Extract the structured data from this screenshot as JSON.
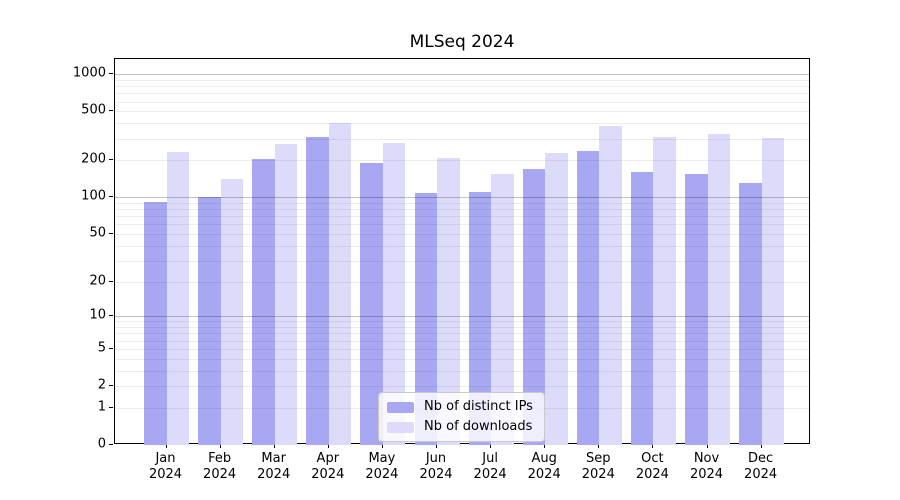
{
  "chart_data": {
    "type": "bar",
    "title": "MLSeq 2024",
    "categories": [
      "Jan 2024",
      "Feb 2024",
      "Mar 2024",
      "Apr 2024",
      "May 2024",
      "Jun 2024",
      "Jul 2024",
      "Aug 2024",
      "Sep 2024",
      "Oct 2024",
      "Nov 2024",
      "Dec 2024"
    ],
    "series": [
      {
        "name": "Nb of distinct IPs",
        "key": "ips",
        "color": "#a8a8f2",
        "values": [
          92,
          101,
          205,
          310,
          192,
          109,
          111,
          170,
          238,
          161,
          155,
          130
        ]
      },
      {
        "name": "Nb of downloads",
        "key": "downloads",
        "color": "#dcdcfa",
        "values": [
          235,
          141,
          270,
          400,
          278,
          210,
          156,
          228,
          380,
          310,
          326,
          303
        ]
      }
    ],
    "y_axis": {
      "scale": "log10(1+value)",
      "ticks": [
        0,
        1,
        2,
        5,
        10,
        20,
        50,
        100,
        200,
        500,
        1000
      ],
      "tick_labels": [
        "0",
        "1",
        "2",
        "5",
        "10",
        "20",
        "50",
        "100",
        "200",
        "500",
        "1000"
      ],
      "ylim": [
        0,
        1330
      ],
      "grid_major": [
        10,
        100,
        1000
      ],
      "grid_minor": [
        1,
        2,
        3,
        4,
        5,
        6,
        7,
        8,
        9,
        20,
        30,
        40,
        50,
        60,
        70,
        80,
        90,
        200,
        300,
        400,
        500,
        600,
        700,
        800,
        900
      ]
    },
    "legend": {
      "position": "lower center"
    },
    "colors": {
      "background": "#ffffff",
      "axis": "#000000"
    }
  }
}
